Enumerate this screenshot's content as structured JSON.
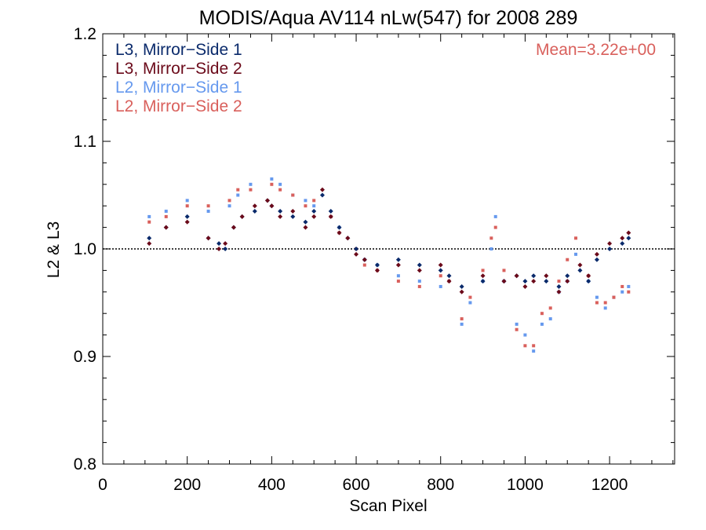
{
  "chart_data": {
    "type": "scatter",
    "title": "MODIS/Aqua AV114 nLw(547) for 2008 289",
    "xlabel": "Scan Pixel",
    "ylabel": "L2 & L3",
    "xlim": [
      0,
      1354
    ],
    "ylim": [
      0.8,
      1.2
    ],
    "xticks": [
      "0",
      "200",
      "400",
      "600",
      "800",
      "1000",
      "1200"
    ],
    "yticks": [
      "0.8",
      "0.9",
      "1.0",
      "1.1",
      "1.2"
    ],
    "reference_line": 1.0,
    "annotation": "Mean=3.22e+00",
    "annotation_color": "#d9605c",
    "legend_position": "top-left",
    "series": [
      {
        "name": "L3, Mirror−Side 1",
        "color": "#0a2a6b",
        "marker": "diamond",
        "points": [
          [
            110,
            1.01
          ],
          [
            150,
            1.02
          ],
          [
            200,
            1.03
          ],
          [
            250,
            1.01
          ],
          [
            275,
            1.005
          ],
          [
            290,
            1.0
          ],
          [
            310,
            1.02
          ],
          [
            330,
            1.03
          ],
          [
            360,
            1.035
          ],
          [
            390,
            1.045
          ],
          [
            400,
            1.04
          ],
          [
            420,
            1.035
          ],
          [
            450,
            1.03
          ],
          [
            480,
            1.025
          ],
          [
            500,
            1.035
          ],
          [
            520,
            1.05
          ],
          [
            540,
            1.035
          ],
          [
            560,
            1.02
          ],
          [
            580,
            1.01
          ],
          [
            600,
            1.0
          ],
          [
            620,
            0.99
          ],
          [
            650,
            0.985
          ],
          [
            700,
            0.99
          ],
          [
            750,
            0.985
          ],
          [
            800,
            0.98
          ],
          [
            820,
            0.975
          ],
          [
            850,
            0.965
          ],
          [
            900,
            0.97
          ],
          [
            950,
            0.97
          ],
          [
            980,
            0.975
          ],
          [
            1000,
            0.97
          ],
          [
            1020,
            0.975
          ],
          [
            1050,
            0.97
          ],
          [
            1080,
            0.965
          ],
          [
            1100,
            0.975
          ],
          [
            1130,
            0.98
          ],
          [
            1150,
            0.97
          ],
          [
            1170,
            0.99
          ],
          [
            1200,
            1.0
          ],
          [
            1230,
            1.005
          ],
          [
            1245,
            1.01
          ]
        ]
      },
      {
        "name": "L3, Mirror−Side 2",
        "color": "#6b0a1a",
        "marker": "diamond",
        "points": [
          [
            110,
            1.005
          ],
          [
            150,
            1.02
          ],
          [
            200,
            1.025
          ],
          [
            250,
            1.01
          ],
          [
            275,
            1.0
          ],
          [
            290,
            1.005
          ],
          [
            310,
            1.02
          ],
          [
            330,
            1.03
          ],
          [
            360,
            1.04
          ],
          [
            390,
            1.045
          ],
          [
            400,
            1.04
          ],
          [
            420,
            1.03
          ],
          [
            450,
            1.035
          ],
          [
            480,
            1.02
          ],
          [
            500,
            1.03
          ],
          [
            520,
            1.055
          ],
          [
            540,
            1.03
          ],
          [
            560,
            1.015
          ],
          [
            580,
            1.01
          ],
          [
            600,
            0.995
          ],
          [
            620,
            0.99
          ],
          [
            650,
            0.98
          ],
          [
            700,
            0.985
          ],
          [
            750,
            0.98
          ],
          [
            800,
            0.985
          ],
          [
            820,
            0.97
          ],
          [
            850,
            0.96
          ],
          [
            900,
            0.975
          ],
          [
            950,
            0.97
          ],
          [
            980,
            0.975
          ],
          [
            1000,
            0.965
          ],
          [
            1020,
            0.97
          ],
          [
            1050,
            0.975
          ],
          [
            1080,
            0.96
          ],
          [
            1100,
            0.97
          ],
          [
            1130,
            0.985
          ],
          [
            1150,
            0.975
          ],
          [
            1170,
            0.995
          ],
          [
            1200,
            1.005
          ],
          [
            1230,
            1.01
          ],
          [
            1245,
            1.015
          ]
        ]
      },
      {
        "name": "L2, Mirror−Side 1",
        "color": "#6699ee",
        "marker": "square",
        "points": [
          [
            110,
            1.03
          ],
          [
            150,
            1.035
          ],
          [
            200,
            1.045
          ],
          [
            250,
            1.035
          ],
          [
            300,
            1.04
          ],
          [
            320,
            1.05
          ],
          [
            350,
            1.06
          ],
          [
            400,
            1.065
          ],
          [
            420,
            1.06
          ],
          [
            450,
            1.05
          ],
          [
            480,
            1.045
          ],
          [
            500,
            1.04
          ],
          [
            540,
            1.03
          ],
          [
            560,
            1.02
          ],
          [
            600,
            1.0
          ],
          [
            620,
            0.99
          ],
          [
            650,
            0.985
          ],
          [
            700,
            0.975
          ],
          [
            750,
            0.97
          ],
          [
            800,
            0.965
          ],
          [
            820,
            0.97
          ],
          [
            850,
            0.93
          ],
          [
            870,
            0.95
          ],
          [
            900,
            0.97
          ],
          [
            920,
            1.0
          ],
          [
            930,
            1.03
          ],
          [
            950,
            0.97
          ],
          [
            980,
            0.93
          ],
          [
            1000,
            0.92
          ],
          [
            1020,
            0.905
          ],
          [
            1040,
            0.93
          ],
          [
            1060,
            0.935
          ],
          [
            1080,
            0.96
          ],
          [
            1100,
            0.97
          ],
          [
            1120,
            0.995
          ],
          [
            1150,
            0.97
          ],
          [
            1170,
            0.955
          ],
          [
            1190,
            0.945
          ],
          [
            1210,
            0.955
          ],
          [
            1230,
            0.96
          ],
          [
            1245,
            0.965
          ]
        ]
      },
      {
        "name": "L2, Mirror−Side 2",
        "color": "#d9605c",
        "marker": "square",
        "points": [
          [
            110,
            1.025
          ],
          [
            150,
            1.03
          ],
          [
            200,
            1.04
          ],
          [
            250,
            1.04
          ],
          [
            300,
            1.045
          ],
          [
            320,
            1.055
          ],
          [
            350,
            1.055
          ],
          [
            400,
            1.06
          ],
          [
            420,
            1.055
          ],
          [
            450,
            1.05
          ],
          [
            480,
            1.04
          ],
          [
            500,
            1.045
          ],
          [
            540,
            1.03
          ],
          [
            560,
            1.015
          ],
          [
            600,
            1.0
          ],
          [
            620,
            0.985
          ],
          [
            650,
            0.98
          ],
          [
            700,
            0.97
          ],
          [
            750,
            0.965
          ],
          [
            800,
            0.975
          ],
          [
            820,
            0.97
          ],
          [
            850,
            0.935
          ],
          [
            870,
            0.955
          ],
          [
            900,
            0.98
          ],
          [
            920,
            1.01
          ],
          [
            930,
            1.02
          ],
          [
            950,
            0.98
          ],
          [
            980,
            0.925
          ],
          [
            1000,
            0.91
          ],
          [
            1020,
            0.91
          ],
          [
            1040,
            0.94
          ],
          [
            1060,
            0.945
          ],
          [
            1080,
            0.97
          ],
          [
            1100,
            0.99
          ],
          [
            1120,
            1.01
          ],
          [
            1150,
            0.975
          ],
          [
            1170,
            0.95
          ],
          [
            1190,
            0.95
          ],
          [
            1210,
            0.955
          ],
          [
            1230,
            0.965
          ],
          [
            1245,
            0.96
          ]
        ]
      }
    ]
  }
}
